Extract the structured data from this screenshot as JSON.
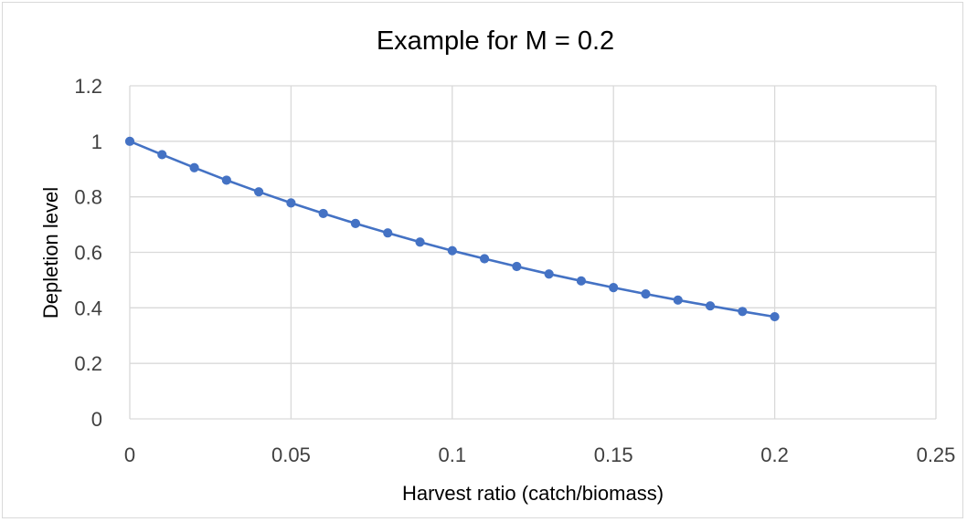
{
  "chart_data": {
    "type": "line",
    "title": "Example for M = 0.2",
    "xlabel": "Harvest ratio (catch/biomass)",
    "ylabel": "Depletion level",
    "xlim": [
      0,
      0.25
    ],
    "ylim": [
      0,
      1.2
    ],
    "x_ticks": [
      "0",
      "0.05",
      "0.1",
      "0.15",
      "0.2",
      "0.25"
    ],
    "y_ticks": [
      "0",
      "0.2",
      "0.4",
      "0.6",
      "0.8",
      "1",
      "1.2"
    ],
    "grid": true,
    "legend": "none",
    "series": [
      {
        "color": "#4472c4",
        "marker": "circle",
        "x": [
          0,
          0.01,
          0.02,
          0.03,
          0.04,
          0.05,
          0.06,
          0.07,
          0.08,
          0.09,
          0.1,
          0.11,
          0.12,
          0.13,
          0.14,
          0.15,
          0.16,
          0.17,
          0.18,
          0.19,
          0.2
        ],
        "y": [
          1.0,
          0.952,
          0.905,
          0.86,
          0.818,
          0.778,
          0.74,
          0.704,
          0.67,
          0.637,
          0.606,
          0.577,
          0.549,
          0.522,
          0.497,
          0.473,
          0.45,
          0.428,
          0.407,
          0.387,
          0.368
        ]
      }
    ]
  }
}
